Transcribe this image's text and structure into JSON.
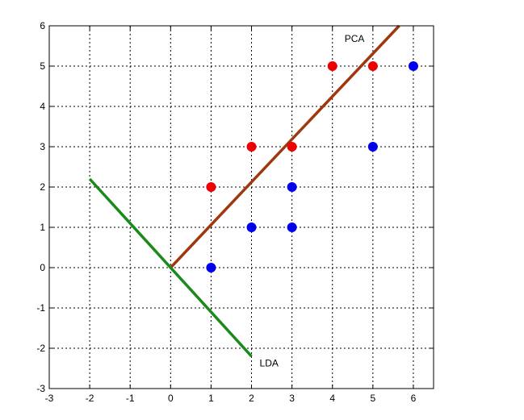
{
  "chart_data": {
    "type": "scatter",
    "title": "",
    "xlabel": "",
    "ylabel": "",
    "xlim": [
      -3,
      6.5
    ],
    "ylim": [
      -3,
      6
    ],
    "xticks": [
      "-3",
      "-2",
      "-1",
      "0",
      "1",
      "2",
      "3",
      "4",
      "5",
      "6"
    ],
    "yticks": [
      "-3",
      "-2",
      "-1",
      "0",
      "1",
      "2",
      "3",
      "4",
      "5",
      "6"
    ],
    "grid": true,
    "grid_style": "dotted",
    "series": [
      {
        "color": "#ee0000",
        "marker": "circle",
        "x": [
          1,
          2,
          3,
          4,
          5
        ],
        "y": [
          2,
          3,
          3,
          5,
          5
        ]
      },
      {
        "color": "#0000ee",
        "marker": "circle",
        "x": [
          1,
          2,
          3,
          3,
          5,
          6
        ],
        "y": [
          0,
          1,
          1,
          2,
          3,
          5
        ]
      }
    ],
    "lines": [
      {
        "name": "PCA",
        "label": "PCA",
        "color": "#a0380f",
        "x": [
          0,
          5.65
        ],
        "y": [
          0,
          6
        ]
      },
      {
        "name": "LDA",
        "label": "LDA",
        "color": "#1a8a1a",
        "x": [
          -2,
          2
        ],
        "y": [
          2.2,
          -2.2
        ]
      }
    ],
    "annotations": [
      {
        "text": "PCA",
        "x": 4.3,
        "y": 5.6
      },
      {
        "text": "LDA",
        "x": 2.2,
        "y": -2.45
      }
    ]
  }
}
